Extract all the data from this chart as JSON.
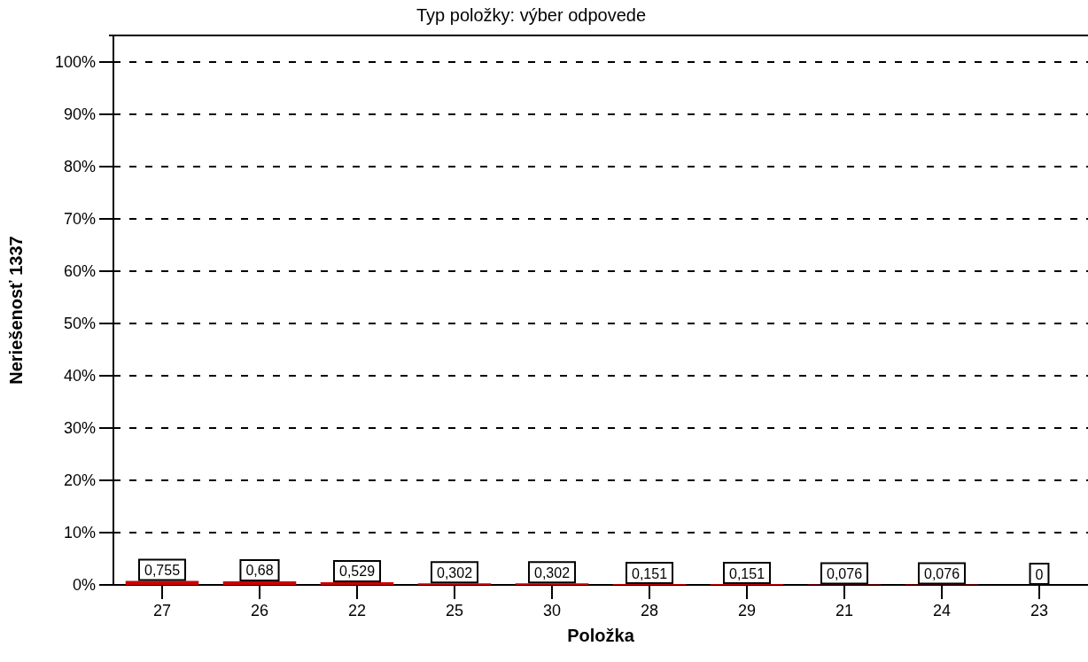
{
  "chart_data": {
    "type": "bar",
    "title": "Typ položky: výber odpovede",
    "xlabel": "Položka",
    "ylabel": "Neriešenosť 1337",
    "categories": [
      "27",
      "26",
      "22",
      "25",
      "30",
      "28",
      "29",
      "21",
      "24",
      "23"
    ],
    "values": [
      0.755,
      0.68,
      0.529,
      0.302,
      0.302,
      0.151,
      0.151,
      0.076,
      0.076,
      0
    ],
    "value_labels": [
      "0,755",
      "0,68",
      "0,529",
      "0,302",
      "0,302",
      "0,151",
      "0,151",
      "0,076",
      "0,076",
      "0"
    ],
    "color": "#cc0000",
    "ylim": [
      0,
      105
    ],
    "yticks": [
      {
        "value": 0,
        "label": "0%"
      },
      {
        "value": 10,
        "label": "10%"
      },
      {
        "value": 20,
        "label": "20%"
      },
      {
        "value": 30,
        "label": "30%"
      },
      {
        "value": 40,
        "label": "40%"
      },
      {
        "value": 50,
        "label": "50%"
      },
      {
        "value": 60,
        "label": "60%"
      },
      {
        "value": 70,
        "label": "70%"
      },
      {
        "value": 80,
        "label": "80%"
      },
      {
        "value": 90,
        "label": "90%"
      },
      {
        "value": 100,
        "label": "100%"
      }
    ],
    "grid": "y",
    "line_style": "dashed"
  }
}
